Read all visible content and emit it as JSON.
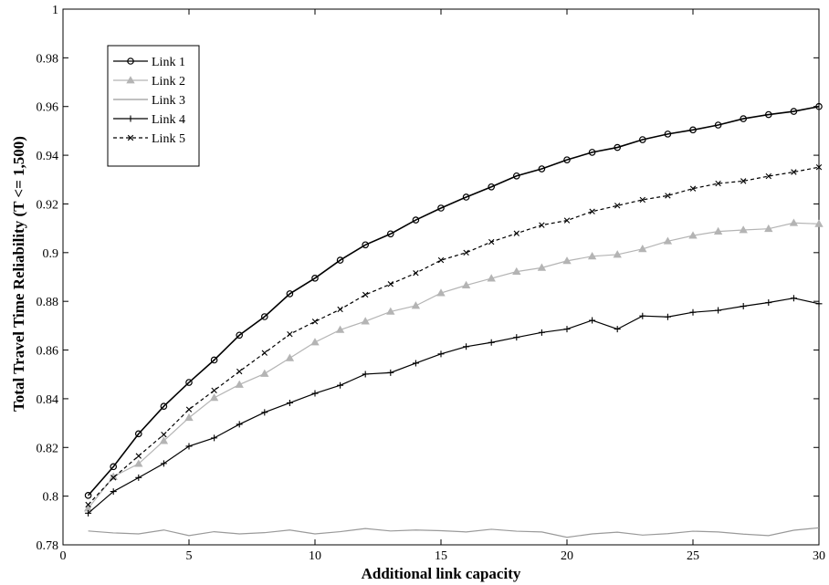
{
  "chart_data": {
    "type": "line",
    "title": "",
    "xlabel": "Additional link capacity",
    "ylabel": "Total Travel Time Reliability (T <= 1,500)",
    "xlim": [
      0,
      30
    ],
    "ylim": [
      0.78,
      1
    ],
    "xticks": [
      0,
      5,
      10,
      15,
      20,
      25,
      30
    ],
    "xtick_labels": [
      "0",
      "5",
      "10",
      "15",
      "20",
      "25",
      "30"
    ],
    "yticks": [
      0.78,
      0.8,
      0.82,
      0.84,
      0.86,
      0.88,
      0.9,
      0.92,
      0.94,
      0.96,
      0.98,
      1
    ],
    "ytick_labels": [
      "0.78",
      "0.8",
      "0.82",
      "0.84",
      "0.86",
      "0.88",
      "0.9",
      "0.92",
      "0.94",
      "0.96",
      "0.98",
      "1"
    ],
    "grid": false,
    "legend_position": "top-left",
    "x": [
      1,
      2,
      3,
      4,
      5,
      6,
      7,
      8,
      9,
      10,
      11,
      12,
      13,
      14,
      15,
      16,
      17,
      18,
      19,
      20,
      21,
      22,
      23,
      24,
      25,
      26,
      27,
      28,
      29,
      30
    ],
    "series": [
      {
        "name": "Link 1",
        "color": "#000000",
        "line_style": "solid",
        "marker": "circle",
        "values": [
          0.8003,
          0.8121,
          0.8256,
          0.8369,
          0.8467,
          0.8559,
          0.8661,
          0.8737,
          0.8831,
          0.8895,
          0.8969,
          0.9032,
          0.9077,
          0.9134,
          0.9183,
          0.9228,
          0.927,
          0.9315,
          0.9344,
          0.9381,
          0.9412,
          0.9432,
          0.9464,
          0.9487,
          0.9504,
          0.9524,
          0.955,
          0.9567,
          0.958,
          0.96
        ]
      },
      {
        "name": "Link 2",
        "color": "#b4b4b4",
        "line_style": "solid",
        "marker": "triangle",
        "values": [
          0.795,
          0.808,
          0.8133,
          0.8227,
          0.8322,
          0.8404,
          0.8458,
          0.8503,
          0.8567,
          0.8632,
          0.8683,
          0.8718,
          0.8758,
          0.8782,
          0.8834,
          0.8866,
          0.8894,
          0.8922,
          0.8938,
          0.8966,
          0.8985,
          0.8992,
          0.9015,
          0.9047,
          0.907,
          0.9087,
          0.9093,
          0.9098,
          0.9122,
          0.9118
        ]
      },
      {
        "name": "Link 3",
        "color": "#9a9a9a",
        "line_style": "solid",
        "marker": "none",
        "values": [
          0.7857,
          0.7849,
          0.7845,
          0.7861,
          0.7838,
          0.7854,
          0.7845,
          0.785,
          0.7861,
          0.7845,
          0.7854,
          0.7867,
          0.7857,
          0.7861,
          0.7858,
          0.7853,
          0.7864,
          0.7856,
          0.7853,
          0.7831,
          0.7845,
          0.7852,
          0.784,
          0.7846,
          0.7856,
          0.7853,
          0.7844,
          0.7838,
          0.786,
          0.787
        ]
      },
      {
        "name": "Link 4",
        "color": "#000000",
        "line_style": "solid",
        "marker": "plus",
        "values": [
          0.793,
          0.8019,
          0.8076,
          0.8134,
          0.8205,
          0.8239,
          0.8295,
          0.8344,
          0.8383,
          0.8422,
          0.8455,
          0.8501,
          0.8507,
          0.8546,
          0.8584,
          0.8614,
          0.8631,
          0.8652,
          0.8672,
          0.8686,
          0.8722,
          0.8686,
          0.874,
          0.8736,
          0.8755,
          0.8763,
          0.878,
          0.8795,
          0.8813,
          0.879
        ]
      },
      {
        "name": "Link 5",
        "color": "#000000",
        "line_style": "dashed",
        "marker": "x",
        "values": [
          0.7965,
          0.8076,
          0.8165,
          0.8253,
          0.8356,
          0.8434,
          0.8512,
          0.8588,
          0.8665,
          0.8717,
          0.8767,
          0.8827,
          0.8871,
          0.8916,
          0.8969,
          0.9,
          0.9044,
          0.9079,
          0.9113,
          0.9132,
          0.9169,
          0.9193,
          0.9217,
          0.9234,
          0.9263,
          0.9284,
          0.9294,
          0.9314,
          0.9331,
          0.9351
        ]
      }
    ]
  }
}
